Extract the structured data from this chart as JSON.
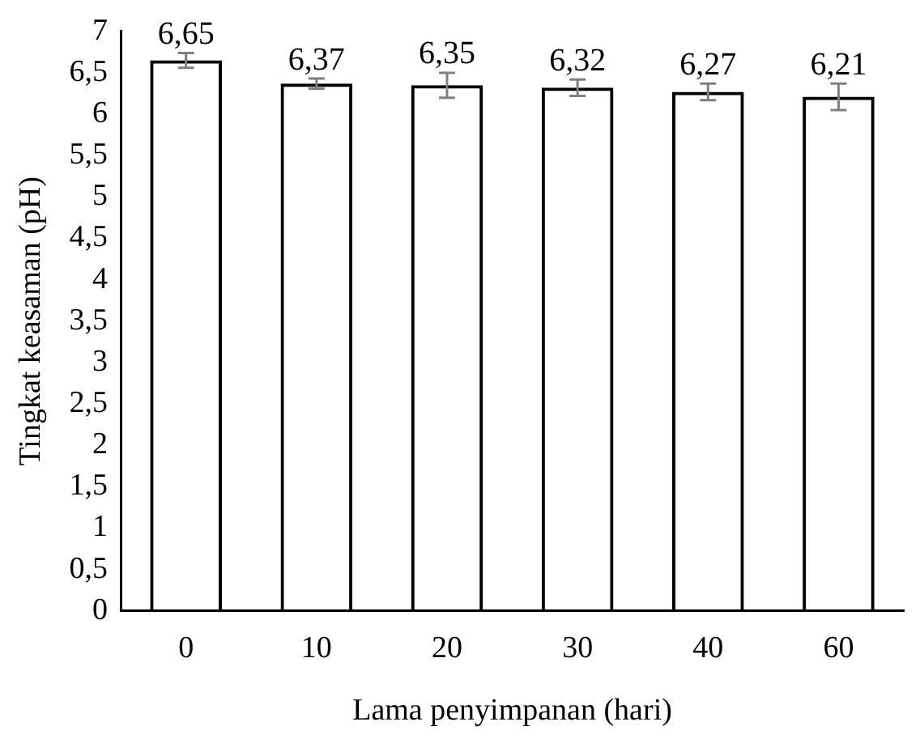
{
  "chart_data": {
    "type": "bar",
    "xlabel": "Lama penyimpanan (hari)",
    "ylabel": "Tingkat keasaman (pH)",
    "categories": [
      "0",
      "10",
      "20",
      "30",
      "40",
      "60"
    ],
    "values": [
      6.65,
      6.37,
      6.35,
      6.32,
      6.27,
      6.21
    ],
    "errors": [
      0.09,
      0.06,
      0.15,
      0.1,
      0.1,
      0.16
    ],
    "value_labels": [
      "6,65",
      "6,37",
      "6,35",
      "6,32",
      "6,27",
      "6,21"
    ],
    "color": "#000000",
    "ylim": [
      0,
      7
    ],
    "yticks": [
      0,
      {
        "value": 0.5,
        "label": "0,5"
      },
      1,
      {
        "value": 1.5,
        "label": "1,5"
      },
      2,
      {
        "value": 2.5,
        "label": "2,5"
      },
      3,
      {
        "value": 3.5,
        "label": "3,5"
      },
      4,
      {
        "value": 4.5,
        "label": "4,5"
      },
      5,
      {
        "value": 5.5,
        "label": "5,5"
      },
      6,
      {
        "value": 6.5,
        "label": "6,5"
      },
      7
    ],
    "grid": false,
    "legend": false
  }
}
